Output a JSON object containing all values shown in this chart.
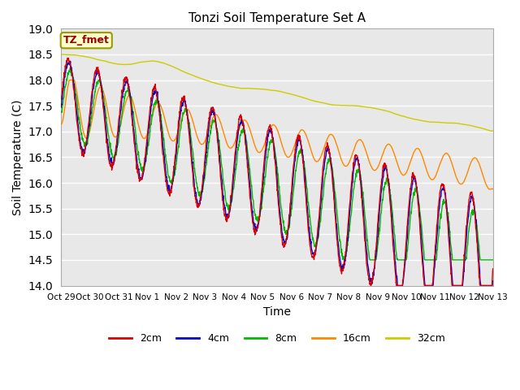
{
  "title": "Tonzi Soil Temperature Set A",
  "xlabel": "Time",
  "ylabel": "Soil Temperature (C)",
  "ylim": [
    14.0,
    19.0
  ],
  "yticks": [
    14.0,
    14.5,
    15.0,
    15.5,
    16.0,
    16.5,
    17.0,
    17.5,
    18.0,
    18.5,
    19.0
  ],
  "x_labels": [
    "Oct 29",
    "Oct 30",
    "Oct 31",
    "Nov 1",
    "Nov 2",
    "Nov 3",
    "Nov 4",
    "Nov 5",
    "Nov 6",
    "Nov 7",
    "Nov 8",
    "Nov 9",
    "Nov 10",
    "Nov 11",
    "Nov 12",
    "Nov 13"
  ],
  "annotation_text": "TZ_fmet",
  "annotation_bg": "#ffffcc",
  "annotation_border": "#999900",
  "annotation_text_color": "#990000",
  "series_colors": {
    "2cm": "#dd0000",
    "4cm": "#0000cc",
    "8cm": "#00bb00",
    "16cm": "#ff8800",
    "32cm": "#cccc00"
  },
  "background_color": "#e8e8e8",
  "grid_color": "#ffffff",
  "plot_bg": "#d8d8d8"
}
